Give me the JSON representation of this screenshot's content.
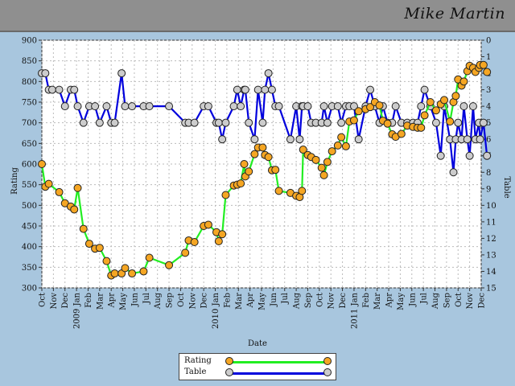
{
  "header": {
    "name": "Mike  Martin"
  },
  "colors": {
    "rating_line": "#22ee22",
    "rating_marker": "#f5a623",
    "table_line": "#0000dd",
    "table_marker": "#cccccc",
    "plot_bg": "#ffffff",
    "page_bg": "#a8c6de",
    "grid": "#bbbbbb"
  },
  "chart_data": {
    "type": "line",
    "xlabel": "Date",
    "ylabel_left": "Rating",
    "ylabel_right": "Table",
    "ylim_left": [
      300,
      900
    ],
    "ylim_right": [
      15,
      0
    ],
    "yticks_left": [
      "300",
      "350",
      "400",
      "450",
      "500",
      "550",
      "600",
      "650",
      "700",
      "750",
      "800",
      "850",
      "900"
    ],
    "yticks_right": [
      "0",
      "1",
      "2",
      "3",
      "4",
      "5",
      "6",
      "7",
      "8",
      "9",
      "10",
      "11",
      "12",
      "13",
      "14",
      "15"
    ],
    "x_ticks": [
      {
        "label": "Oct",
        "t": 0
      },
      {
        "label": "Nov",
        "t": 1
      },
      {
        "label": "Dec",
        "t": 2
      },
      {
        "label": "2009 Jan",
        "t": 3
      },
      {
        "label": "Feb",
        "t": 4
      },
      {
        "label": "Mar",
        "t": 5
      },
      {
        "label": "Apr",
        "t": 6
      },
      {
        "label": "May",
        "t": 7
      },
      {
        "label": "Jun",
        "t": 8
      },
      {
        "label": "Jul",
        "t": 9
      },
      {
        "label": "Aug",
        "t": 10
      },
      {
        "label": "Sep",
        "t": 11
      },
      {
        "label": "Oct",
        "t": 12
      },
      {
        "label": "Nov",
        "t": 13
      },
      {
        "label": "Dec",
        "t": 14
      },
      {
        "label": "2010 Jan",
        "t": 15
      },
      {
        "label": "Feb",
        "t": 16
      },
      {
        "label": "Mar",
        "t": 17
      },
      {
        "label": "Apr",
        "t": 18
      },
      {
        "label": "May",
        "t": 19
      },
      {
        "label": "Jun",
        "t": 20
      },
      {
        "label": "Jul",
        "t": 21
      },
      {
        "label": "Aug",
        "t": 22
      },
      {
        "label": "Sep",
        "t": 23
      },
      {
        "label": "Oct",
        "t": 24
      },
      {
        "label": "Nov",
        "t": 25
      },
      {
        "label": "Dec",
        "t": 26
      },
      {
        "label": "2011 Jan",
        "t": 27
      },
      {
        "label": "Feb",
        "t": 28
      },
      {
        "label": "Mar",
        "t": 29
      },
      {
        "label": "Apr",
        "t": 30
      },
      {
        "label": "May",
        "t": 31
      },
      {
        "label": "Jun",
        "t": 32
      },
      {
        "label": "Jul",
        "t": 33
      },
      {
        "label": "Aug",
        "t": 34
      },
      {
        "label": "Sep",
        "t": 35
      },
      {
        "label": "Oct",
        "t": 36
      },
      {
        "label": "Nov",
        "t": 37
      },
      {
        "label": "Dec",
        "t": 38
      }
    ],
    "series": [
      {
        "name": "Rating",
        "points": [
          [
            0.0,
            600
          ],
          [
            0.3,
            545
          ],
          [
            0.6,
            552
          ],
          [
            1.5,
            532
          ],
          [
            2.0,
            505
          ],
          [
            2.5,
            497
          ],
          [
            2.8,
            490
          ],
          [
            3.1,
            542
          ],
          [
            3.6,
            443
          ],
          [
            4.1,
            407
          ],
          [
            4.6,
            395
          ],
          [
            5.0,
            397
          ],
          [
            5.6,
            365
          ],
          [
            6.0,
            330
          ],
          [
            6.3,
            335
          ],
          [
            6.9,
            335
          ],
          [
            7.2,
            348
          ],
          [
            7.8,
            335
          ],
          [
            8.8,
            340
          ],
          [
            9.3,
            373
          ],
          [
            11.0,
            355
          ],
          [
            12.4,
            385
          ],
          [
            12.7,
            415
          ],
          [
            13.2,
            411
          ],
          [
            14.0,
            450
          ],
          [
            14.4,
            453
          ],
          [
            15.1,
            435
          ],
          [
            15.3,
            413
          ],
          [
            15.6,
            430
          ],
          [
            15.9,
            525
          ],
          [
            16.6,
            548
          ],
          [
            16.9,
            550
          ],
          [
            17.2,
            553
          ],
          [
            17.5,
            600
          ],
          [
            17.6,
            570
          ],
          [
            17.9,
            582
          ],
          [
            18.4,
            624
          ],
          [
            18.7,
            640
          ],
          [
            19.1,
            640
          ],
          [
            19.3,
            622
          ],
          [
            19.6,
            617
          ],
          [
            19.9,
            585
          ],
          [
            20.2,
            586
          ],
          [
            20.5,
            535
          ],
          [
            21.5,
            530
          ],
          [
            22.0,
            523
          ],
          [
            22.3,
            520
          ],
          [
            22.5,
            535
          ],
          [
            22.6,
            635
          ],
          [
            23.0,
            622
          ],
          [
            23.3,
            617
          ],
          [
            23.7,
            610
          ],
          [
            24.2,
            591
          ],
          [
            24.4,
            573
          ],
          [
            24.7,
            605
          ],
          [
            25.1,
            631
          ],
          [
            25.6,
            645
          ],
          [
            25.9,
            665
          ],
          [
            26.3,
            643
          ],
          [
            26.6,
            703
          ],
          [
            27.0,
            706
          ],
          [
            27.4,
            728
          ],
          [
            28.0,
            733
          ],
          [
            28.4,
            738
          ],
          [
            28.8,
            750
          ],
          [
            29.2,
            742
          ],
          [
            29.5,
            705
          ],
          [
            29.9,
            698
          ],
          [
            30.3,
            672
          ],
          [
            30.6,
            666
          ],
          [
            31.1,
            673
          ],
          [
            31.6,
            693
          ],
          [
            32.1,
            690
          ],
          [
            32.5,
            688
          ],
          [
            32.8,
            688
          ],
          [
            33.1,
            718
          ],
          [
            33.6,
            750
          ],
          [
            34.1,
            730
          ],
          [
            34.5,
            745
          ],
          [
            34.8,
            755
          ],
          [
            35.3,
            703
          ],
          [
            35.6,
            750
          ],
          [
            35.8,
            765
          ],
          [
            36.0,
            805
          ],
          [
            36.3,
            790
          ],
          [
            36.5,
            800
          ],
          [
            36.8,
            825
          ],
          [
            37.0,
            838
          ],
          [
            37.3,
            833
          ],
          [
            37.5,
            823
          ],
          [
            37.8,
            833
          ],
          [
            37.9,
            840
          ],
          [
            38.2,
            840
          ],
          [
            38.5,
            823
          ]
        ]
      },
      {
        "name": "Table",
        "points": [
          [
            0.0,
            2
          ],
          [
            0.3,
            2
          ],
          [
            0.6,
            3
          ],
          [
            0.9,
            3
          ],
          [
            1.5,
            3
          ],
          [
            2.0,
            4
          ],
          [
            2.5,
            3
          ],
          [
            2.8,
            3
          ],
          [
            3.1,
            4
          ],
          [
            3.6,
            5
          ],
          [
            4.1,
            4
          ],
          [
            4.6,
            4
          ],
          [
            5.0,
            5
          ],
          [
            5.6,
            4
          ],
          [
            6.0,
            5
          ],
          [
            6.3,
            5
          ],
          [
            6.9,
            2
          ],
          [
            7.2,
            4
          ],
          [
            7.8,
            4
          ],
          [
            8.8,
            4
          ],
          [
            9.3,
            4
          ],
          [
            11.0,
            4
          ],
          [
            12.4,
            5
          ],
          [
            12.7,
            5
          ],
          [
            13.2,
            5
          ],
          [
            14.0,
            4
          ],
          [
            14.4,
            4
          ],
          [
            15.1,
            5
          ],
          [
            15.3,
            5
          ],
          [
            15.6,
            6
          ],
          [
            15.9,
            5
          ],
          [
            16.6,
            4
          ],
          [
            16.9,
            3
          ],
          [
            17.2,
            4
          ],
          [
            17.5,
            3
          ],
          [
            17.6,
            3
          ],
          [
            17.9,
            5
          ],
          [
            18.4,
            6
          ],
          [
            18.7,
            3
          ],
          [
            19.1,
            5
          ],
          [
            19.3,
            3
          ],
          [
            19.6,
            2
          ],
          [
            19.9,
            3
          ],
          [
            20.2,
            4
          ],
          [
            20.5,
            4
          ],
          [
            21.5,
            6
          ],
          [
            22.0,
            4
          ],
          [
            22.3,
            6
          ],
          [
            22.5,
            4
          ],
          [
            22.6,
            4
          ],
          [
            23.0,
            4
          ],
          [
            23.3,
            5
          ],
          [
            23.7,
            5
          ],
          [
            24.2,
            5
          ],
          [
            24.4,
            4
          ],
          [
            24.7,
            5
          ],
          [
            25.1,
            4
          ],
          [
            25.6,
            4
          ],
          [
            25.9,
            5
          ],
          [
            26.3,
            4
          ],
          [
            26.6,
            4
          ],
          [
            27.0,
            4
          ],
          [
            27.4,
            6
          ],
          [
            28.0,
            4
          ],
          [
            28.4,
            3
          ],
          [
            28.8,
            4
          ],
          [
            29.2,
            5
          ],
          [
            29.5,
            4
          ],
          [
            29.9,
            5
          ],
          [
            30.3,
            5
          ],
          [
            30.6,
            4
          ],
          [
            31.1,
            5
          ],
          [
            31.6,
            5
          ],
          [
            32.1,
            5
          ],
          [
            32.5,
            5
          ],
          [
            32.8,
            4
          ],
          [
            33.1,
            3
          ],
          [
            33.6,
            4
          ],
          [
            34.1,
            5
          ],
          [
            34.5,
            7
          ],
          [
            34.8,
            4
          ],
          [
            35.3,
            6
          ],
          [
            35.6,
            8
          ],
          [
            35.8,
            6
          ],
          [
            36.0,
            5
          ],
          [
            36.3,
            6
          ],
          [
            36.5,
            4
          ],
          [
            36.8,
            6
          ],
          [
            37.0,
            7
          ],
          [
            37.3,
            4
          ],
          [
            37.5,
            6
          ],
          [
            37.8,
            5
          ],
          [
            37.9,
            6
          ],
          [
            38.2,
            5
          ],
          [
            38.5,
            7
          ]
        ]
      }
    ]
  },
  "legend": {
    "rating": "Rating",
    "table": "Table"
  }
}
